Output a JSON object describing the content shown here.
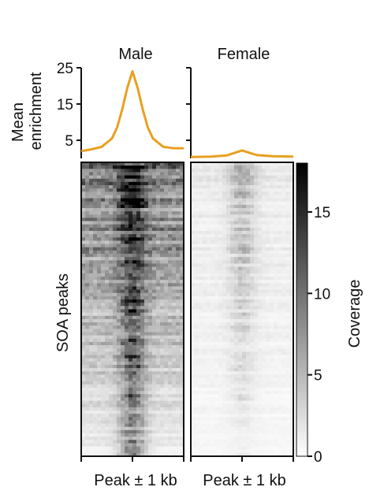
{
  "chart_data": [
    {
      "type": "line",
      "panel": "Male",
      "title": "Male",
      "ylabel": "Mean enrichment",
      "ylabel_lines": [
        "Mean",
        "enrichment"
      ],
      "ylim": [
        0,
        25
      ],
      "yticks": [
        5,
        15,
        25
      ],
      "xlim": [
        -1,
        1
      ],
      "x": [
        -1.0,
        -0.8,
        -0.6,
        -0.4,
        -0.3,
        -0.2,
        -0.1,
        0.0,
        0.1,
        0.2,
        0.3,
        0.4,
        0.6,
        0.8,
        1.0
      ],
      "values": [
        2.0,
        2.5,
        3.2,
        5.5,
        8.5,
        13.5,
        19.5,
        24.0,
        19.5,
        13.5,
        8.5,
        5.5,
        3.2,
        2.8,
        2.8
      ],
      "color": "#e8a020"
    },
    {
      "type": "line",
      "panel": "Female",
      "title": "Female",
      "ylim": [
        0,
        25
      ],
      "xlim": [
        -1,
        1
      ],
      "x": [
        -1.0,
        -0.6,
        -0.3,
        -0.15,
        0.0,
        0.15,
        0.3,
        0.6,
        1.0
      ],
      "values": [
        0.4,
        0.5,
        0.8,
        1.5,
        2.2,
        1.5,
        0.9,
        0.6,
        0.5
      ],
      "color": "#e8a020"
    },
    {
      "type": "heatmap",
      "panel": "Male",
      "xlabel": "Peak ± 1 kb",
      "ylabel": "SOA peaks",
      "xlim": [
        -1,
        1
      ],
      "center_intensity_top": 17,
      "center_intensity_bottom": 7,
      "flank_intensity_top": 9,
      "flank_intensity_bottom": 1
    },
    {
      "type": "heatmap",
      "panel": "Female",
      "xlabel": "Peak ± 1 kb",
      "xlim": [
        -1,
        1
      ],
      "center_intensity_top": 5,
      "center_intensity_bottom": 1,
      "flank_intensity_top": 1.5,
      "flank_intensity_bottom": 0.5
    }
  ],
  "colorbar": {
    "label": "Coverage",
    "range": [
      0,
      18
    ],
    "ticks": [
      0,
      5,
      10,
      15
    ],
    "colors": [
      "#ffffff",
      "#000000"
    ]
  },
  "line_color": "#e8a020"
}
